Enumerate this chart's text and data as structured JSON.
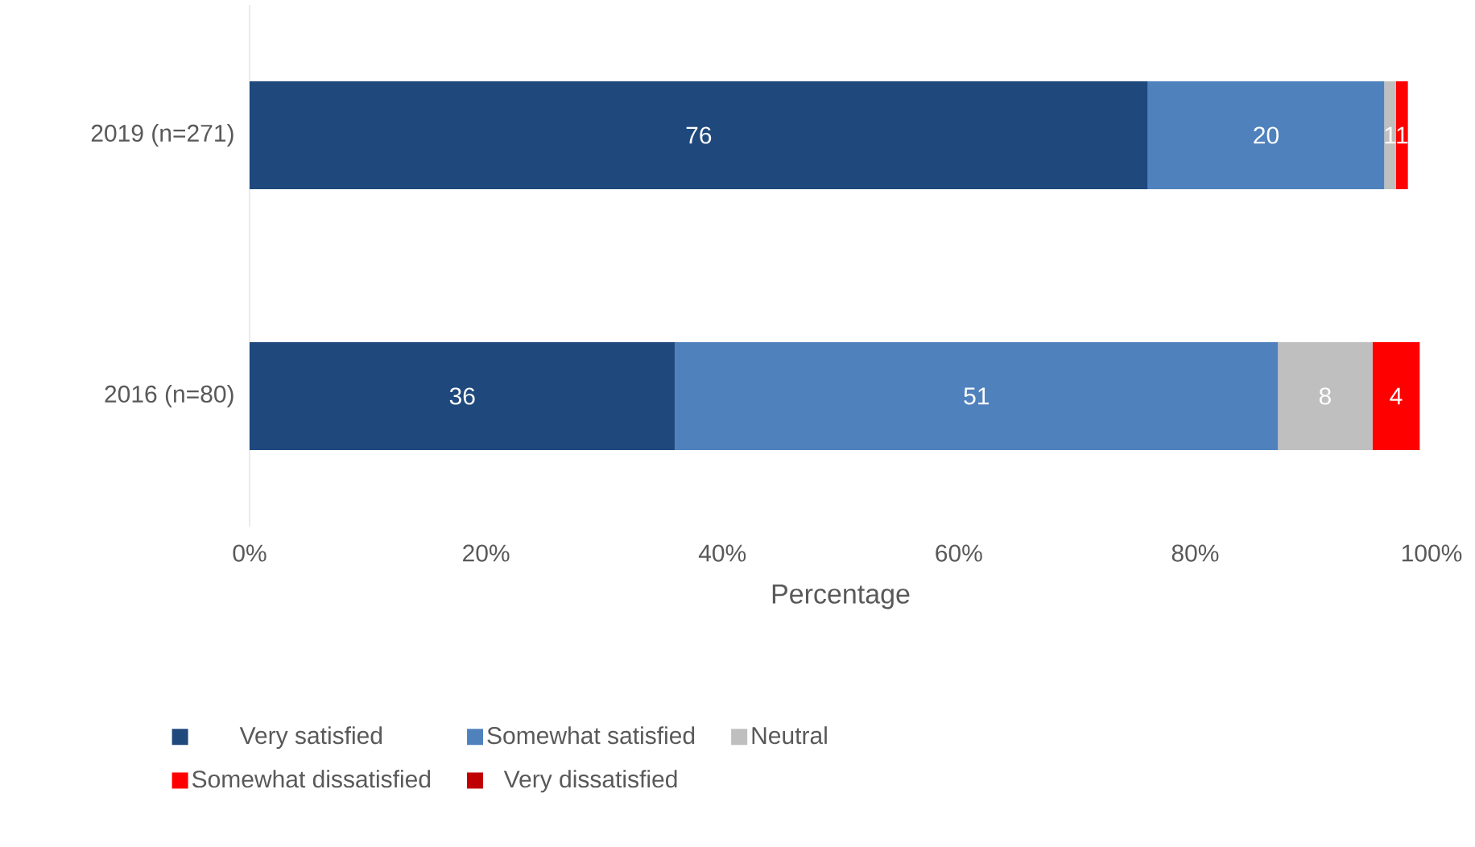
{
  "chart_data": {
    "type": "bar",
    "orientation": "horizontal",
    "stacked": true,
    "categories": [
      "2019 (n=271)",
      "2016 (n=80)"
    ],
    "xlabel": "Percentage",
    "xlim": [
      0,
      100
    ],
    "xticks": [
      {
        "value": 0,
        "label": "0%"
      },
      {
        "value": 20,
        "label": "20%"
      },
      {
        "value": 40,
        "label": "40%"
      },
      {
        "value": 60,
        "label": "60%"
      },
      {
        "value": 80,
        "label": "80%"
      },
      {
        "value": 100,
        "label": "100%"
      }
    ],
    "series": [
      {
        "name": "Very satisfied",
        "color": "#1f497d",
        "values": [
          76,
          36
        ],
        "value_labels": [
          "76",
          "36"
        ]
      },
      {
        "name": "Somewhat satisfied",
        "color": "#4f81bd",
        "values": [
          20,
          51
        ],
        "value_labels": [
          "20",
          "51"
        ]
      },
      {
        "name": "Neutral",
        "color": "#bfbfbf",
        "values": [
          1,
          8
        ],
        "value_labels": [
          "1",
          "8"
        ]
      },
      {
        "name": "Somewhat dissatisfied",
        "color": "#ff0000",
        "values": [
          1,
          4
        ],
        "value_labels": [
          "1",
          "4"
        ]
      },
      {
        "name": "Very dissatisfied",
        "color": "#c00000",
        "values": [
          0,
          0
        ],
        "value_labels": [
          null,
          null
        ]
      }
    ],
    "legend": "bottom",
    "grid": false
  }
}
